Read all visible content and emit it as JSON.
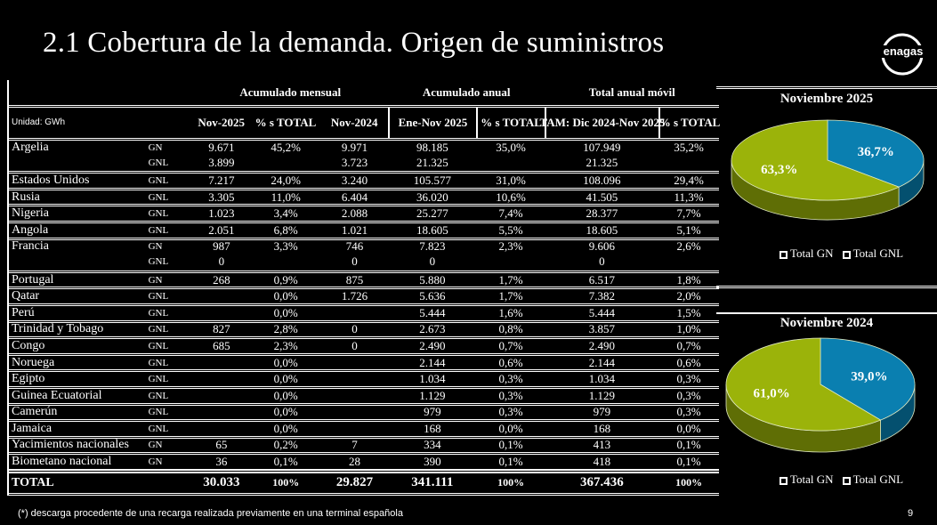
{
  "title": "2.1 Cobertura de la demanda. Origen de suministros",
  "logo_text": "enagas",
  "table": {
    "group_headers": [
      "Acumulado mensual",
      "Acumulado anual",
      "Total anual móvil"
    ],
    "unit_label": "Unidad: GWh",
    "columns": [
      "Nov-2025",
      "% s TOTAL",
      "Nov-2024",
      "Ene-Nov 2025",
      "% s TOTAL",
      "TAM: Dic 2024-Nov 2025",
      "% s TOTAL"
    ],
    "rows": [
      {
        "country": "Argelia",
        "lines": [
          [
            "GN",
            "9.671",
            "45,2%",
            "9.971",
            "98.185",
            "35,0%",
            "107.949",
            "35,2%"
          ],
          [
            "GNL",
            "3.899",
            "",
            "3.723",
            "21.325",
            "",
            "21.325",
            ""
          ]
        ]
      },
      {
        "country": "Estados Unidos",
        "lines": [
          [
            "GNL",
            "7.217",
            "24,0%",
            "3.240",
            "105.577",
            "31,0%",
            "108.096",
            "29,4%"
          ]
        ]
      },
      {
        "country": "Rusia",
        "lines": [
          [
            "GNL",
            "3.305",
            "11,0%",
            "6.404",
            "36.020",
            "10,6%",
            "41.505",
            "11,3%"
          ]
        ]
      },
      {
        "country": "Nigeria",
        "lines": [
          [
            "GNL",
            "1.023",
            "3,4%",
            "2.088",
            "25.277",
            "7,4%",
            "28.377",
            "7,7%"
          ]
        ]
      },
      {
        "country": "Angola",
        "lines": [
          [
            "GNL",
            "2.051",
            "6,8%",
            "1.021",
            "18.605",
            "5,5%",
            "18.605",
            "5,1%"
          ]
        ]
      },
      {
        "country": "Francia",
        "lines": [
          [
            "GN",
            "987",
            "3,3%",
            "746",
            "7.823",
            "2,3%",
            "9.606",
            "2,6%"
          ],
          [
            "GNL",
            "0",
            "",
            "0",
            "0",
            "",
            "0",
            ""
          ]
        ]
      },
      {
        "country": "Portugal",
        "lines": [
          [
            "GN",
            "268",
            "0,9%",
            "875",
            "5.880",
            "1,7%",
            "6.517",
            "1,8%"
          ]
        ]
      },
      {
        "country": "Qatar",
        "lines": [
          [
            "GNL",
            "",
            "0,0%",
            "1.726",
            "5.636",
            "1,7%",
            "7.382",
            "2,0%"
          ]
        ]
      },
      {
        "country": "Perú",
        "lines": [
          [
            "GNL",
            "",
            "0,0%",
            "",
            "5.444",
            "1,6%",
            "5.444",
            "1,5%"
          ]
        ]
      },
      {
        "country": "Trinidad y Tobago",
        "lines": [
          [
            "GNL",
            "827",
            "2,8%",
            "0",
            "2.673",
            "0,8%",
            "3.857",
            "1,0%"
          ]
        ]
      },
      {
        "country": "Congo",
        "lines": [
          [
            "GNL",
            "685",
            "2,3%",
            "0",
            "2.490",
            "0,7%",
            "2.490",
            "0,7%"
          ]
        ]
      },
      {
        "country": "Noruega",
        "lines": [
          [
            "GNL",
            "",
            "0,0%",
            "",
            "2.144",
            "0,6%",
            "2.144",
            "0,6%"
          ]
        ]
      },
      {
        "country": "Egipto",
        "lines": [
          [
            "GNL",
            "",
            "0,0%",
            "",
            "1.034",
            "0,3%",
            "1.034",
            "0,3%"
          ]
        ]
      },
      {
        "country": "Guinea Ecuatorial",
        "lines": [
          [
            "GNL",
            "",
            "0,0%",
            "",
            "1.129",
            "0,3%",
            "1.129",
            "0,3%"
          ]
        ]
      },
      {
        "country": "Camerún",
        "lines": [
          [
            "GNL",
            "",
            "0,0%",
            "",
            "979",
            "0,3%",
            "979",
            "0,3%"
          ]
        ]
      },
      {
        "country": "Jamaica",
        "lines": [
          [
            "GNL",
            "",
            "0,0%",
            "",
            "168",
            "0,0%",
            "168",
            "0,0%"
          ]
        ]
      },
      {
        "country": "Yacimientos nacionales",
        "lines": [
          [
            "GN",
            "65",
            "0,2%",
            "7",
            "334",
            "0,1%",
            "413",
            "0,1%"
          ]
        ]
      },
      {
        "country": "Biometano nacional",
        "lines": [
          [
            "GN",
            "36",
            "0,1%",
            "28",
            "390",
            "0,1%",
            "418",
            "0,1%"
          ]
        ]
      }
    ],
    "total": {
      "label": "TOTAL",
      "values": [
        "30.033",
        "100%",
        "29.827",
        "341.111",
        "100%",
        "367.436",
        "100%"
      ]
    }
  },
  "footnote": "(*) descarga procedente de una recarga realizada previamente en una terminal española",
  "page_number": "9",
  "colors": {
    "gn": "#0a7fb0",
    "gnl": "#9bb30a"
  },
  "chart_data": [
    {
      "type": "pie",
      "title": "Noviembre  2025",
      "categories": [
        "Total GN",
        "Total GNL"
      ],
      "values": [
        36.7,
        63.3
      ],
      "labels": [
        "36,7%",
        "63,3%"
      ],
      "legend": [
        "Total GN",
        "Total GNL"
      ],
      "legend_placement": "bottom"
    },
    {
      "type": "pie",
      "title": "Noviembre  2024",
      "categories": [
        "Total GN",
        "Total GNL"
      ],
      "values": [
        39.0,
        61.0
      ],
      "labels": [
        "39,0%",
        "61,0%"
      ],
      "legend": [
        "Total GN",
        "Total GNL"
      ],
      "legend_placement": "bottom"
    }
  ]
}
